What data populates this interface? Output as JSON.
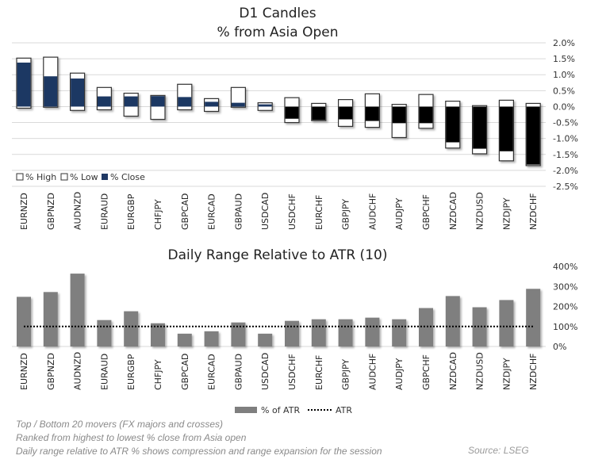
{
  "chart_data": [
    {
      "type": "candlestick",
      "title": "D1 Candles",
      "subtitle": "% from Asia Open",
      "categories": [
        "EURNZD",
        "GBPNZD",
        "AUDNZD",
        "EURAUD",
        "EURGBP",
        "CHFJPY",
        "GBPCAD",
        "EURCAD",
        "GBPAUD",
        "USDCAD",
        "USDCHF",
        "EURCHF",
        "GBPJPY",
        "AUDCHF",
        "AUDJPY",
        "GBPCHF",
        "NZDCAD",
        "NZDUSD",
        "NZDJPY",
        "NZDCHF"
      ],
      "series": [
        {
          "name": "% High",
          "values": [
            1.52,
            1.55,
            1.05,
            0.6,
            0.42,
            0.35,
            0.7,
            0.25,
            0.6,
            0.12,
            0.28,
            0.1,
            0.22,
            0.4,
            0.07,
            0.38,
            0.17,
            0.03,
            0.2,
            0.1
          ]
        },
        {
          "name": "% Low",
          "values": [
            -0.05,
            -0.02,
            -0.12,
            -0.1,
            -0.3,
            -0.4,
            -0.1,
            -0.15,
            -0.02,
            -0.12,
            -0.5,
            -0.44,
            -0.62,
            -0.65,
            -0.97,
            -0.68,
            -1.3,
            -1.48,
            -1.7,
            -1.85
          ]
        },
        {
          "name": "% Close",
          "values": [
            1.38,
            0.95,
            0.88,
            0.32,
            0.32,
            0.33,
            0.3,
            0.15,
            0.12,
            0.07,
            -0.38,
            -0.42,
            -0.4,
            -0.45,
            -0.52,
            -0.52,
            -1.12,
            -1.32,
            -1.4,
            -1.82
          ]
        }
      ],
      "ylim": [
        -2.5,
        2.0
      ],
      "yticks": [
        "2.0%",
        "1.5%",
        "1.0%",
        "0.5%",
        "0.0%",
        "-0.5%",
        "-1.0%",
        "-1.5%",
        "-2.0%",
        "-2.5%"
      ],
      "grid": true,
      "legend": "bottom-left",
      "colors": {
        "positive_close": "#1f3864",
        "negative_close": "#000000",
        "range": "#ffffff"
      }
    },
    {
      "type": "bar",
      "title": "Daily Range Relative to ATR (10)",
      "categories": [
        "EURNZD",
        "GBPNZD",
        "AUDNZD",
        "EURAUD",
        "EURGBP",
        "CHFJPY",
        "GBPCAD",
        "EURCAD",
        "GBPAUD",
        "USDCAD",
        "USDCHF",
        "EURCHF",
        "GBPJPY",
        "AUDCHF",
        "AUDJPY",
        "GBPCHF",
        "NZDCAD",
        "NZDUSD",
        "NZDJPY",
        "NZDCHF"
      ],
      "series": [
        {
          "name": "% of ATR",
          "values": [
            248,
            272,
            364,
            132,
            176,
            116,
            64,
            76,
            120,
            64,
            128,
            136,
            136,
            144,
            136,
            192,
            252,
            196,
            232,
            288
          ]
        },
        {
          "name": "ATR",
          "values": [
            100,
            100,
            100,
            100,
            100,
            100,
            100,
            100,
            100,
            100,
            100,
            100,
            100,
            100,
            100,
            100,
            100,
            100,
            100,
            100
          ]
        }
      ],
      "ylim": [
        0,
        400
      ],
      "yticks": [
        "400%",
        "300%",
        "200%",
        "100%",
        "0%"
      ],
      "legend": "bottom",
      "colors": {
        "bar": "#7f7f7f",
        "atr": "#000000"
      }
    }
  ],
  "notes": [
    "Top / Bottom 20 movers (FX majors and crosses)",
    "Ranked from highest to lowest % close from Asia open",
    "Daily range relative to ATR % shows compression and range expansion for the session"
  ],
  "source": "Source: LSEG"
}
